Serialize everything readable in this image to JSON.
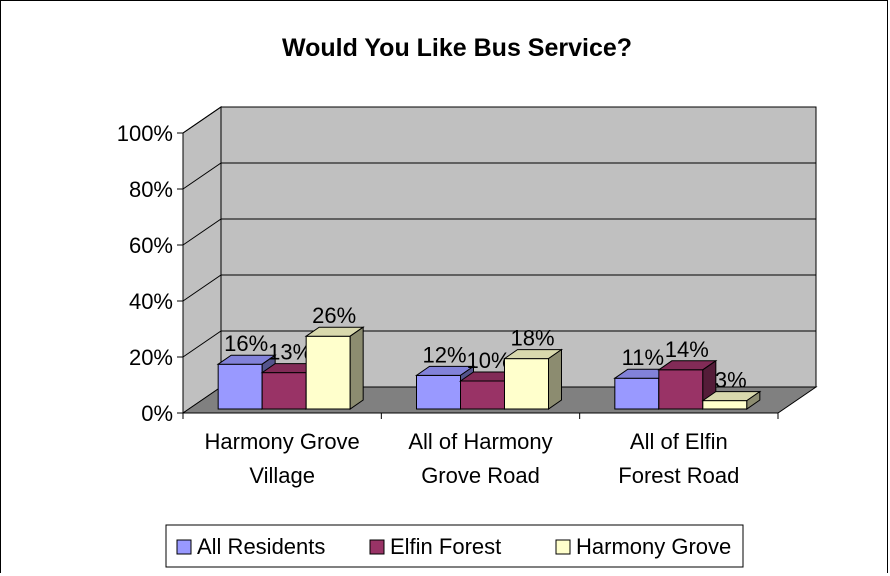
{
  "chart_data": {
    "type": "bar",
    "title": "Would You Like Bus Service?",
    "categories": [
      [
        "Harmony Grove",
        "Village"
      ],
      [
        "All of Harmony",
        "Grove Road"
      ],
      [
        "All of Elfin",
        "Forest Road"
      ]
    ],
    "series": [
      {
        "name": "All Residents",
        "values": [
          16,
          12,
          11
        ],
        "labels": [
          "16%",
          "12%",
          "11%"
        ],
        "color": "#9999ff"
      },
      {
        "name": "Elfin Forest",
        "values": [
          13,
          10,
          14
        ],
        "labels": [
          "13%",
          "10%",
          "14%"
        ],
        "color": "#993366"
      },
      {
        "name": "Harmony Grove",
        "values": [
          26,
          18,
          3
        ],
        "labels": [
          "26%",
          "18%",
          "3%"
        ],
        "color": "#ffffcc"
      }
    ],
    "yticks": [
      "0%",
      "20%",
      "40%",
      "60%",
      "80%",
      "100%"
    ],
    "ylim": [
      0,
      100
    ],
    "grid": true,
    "legend": "bottom",
    "style": {
      "wall": "#c0c0c0",
      "floor": "#808080",
      "grid": "#000000"
    }
  }
}
